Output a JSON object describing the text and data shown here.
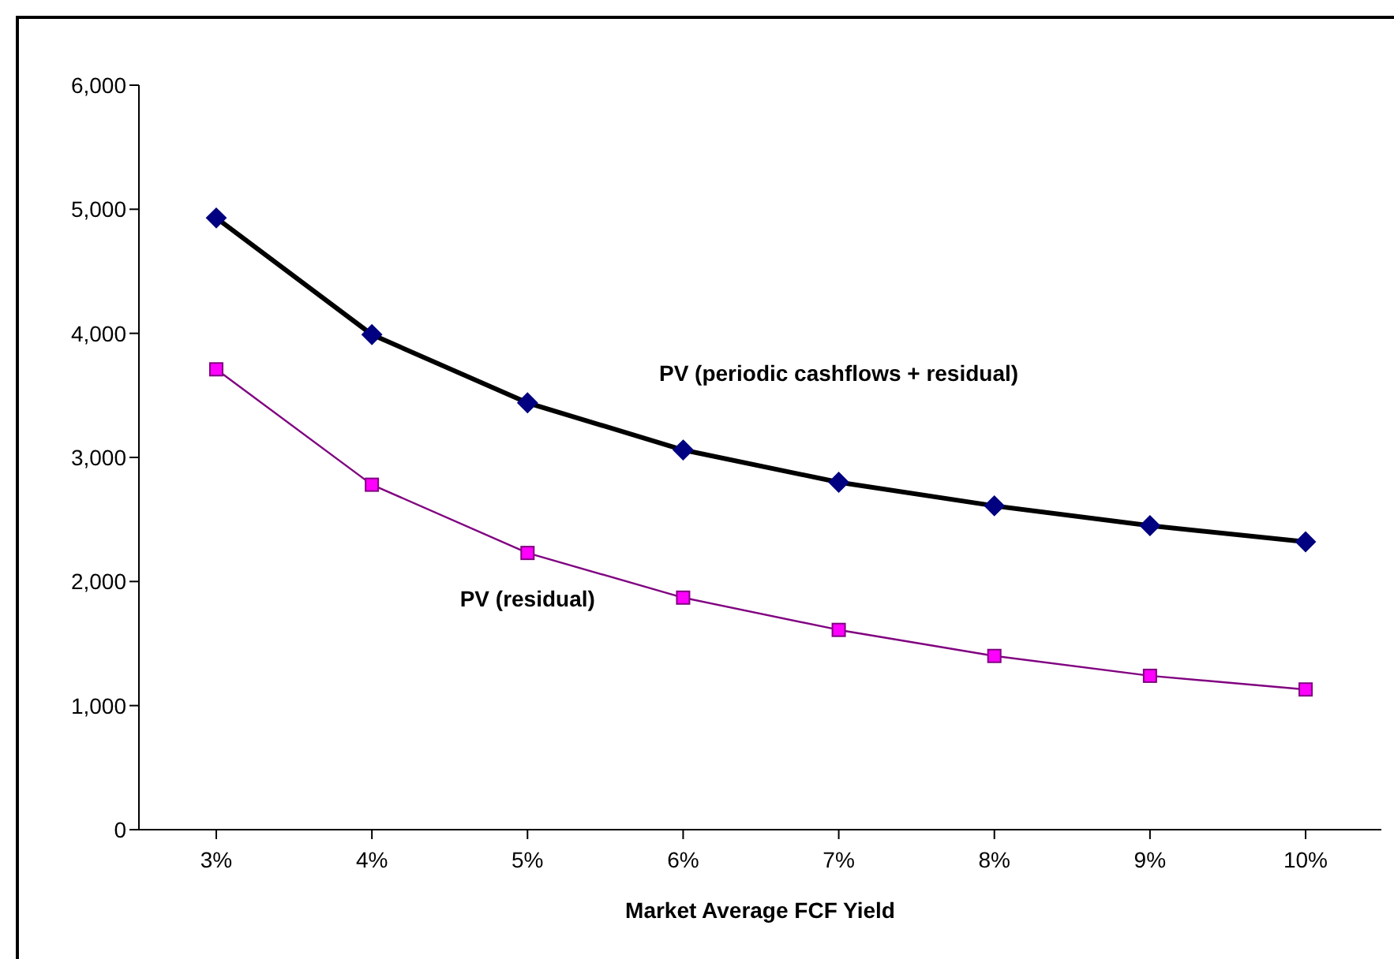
{
  "chart_data": {
    "type": "line",
    "xlabel": "Market Average FCF Yield",
    "categories": [
      "3%",
      "4%",
      "5%",
      "6%",
      "7%",
      "8%",
      "9%",
      "10%"
    ],
    "series": [
      {
        "name": "PV (periodic cashflows + residual)",
        "color": "#000000",
        "colors": [
          "#000080",
          "#000080",
          "#000080",
          "#000080",
          "#000080",
          "#000080",
          "#000080",
          "#000080"
        ],
        "marker": "diamond",
        "values": [
          4930,
          3990,
          3440,
          3060,
          2800,
          2610,
          2450,
          2320
        ]
      },
      {
        "name": "PV (residual)",
        "color": "#800080",
        "colors": [
          "#ff00ff",
          "#ff00ff",
          "#ff00ff",
          "#ff00ff",
          "#ff00ff",
          "#ff00ff",
          "#ff00ff",
          "#ff00ff"
        ],
        "marker": "square",
        "values": [
          3710,
          2780,
          2230,
          1870,
          1610,
          1400,
          1240,
          1130
        ]
      }
    ],
    "ylim": [
      0,
      6000
    ],
    "yticks": [
      0,
      {
        "value": 1000,
        "label": "1,000"
      },
      {
        "value": 2000,
        "label": "2,000"
      },
      {
        "value": 3000,
        "label": "3,000"
      },
      {
        "value": 4000,
        "label": "4,000"
      },
      {
        "value": 5000,
        "label": "5,000"
      },
      {
        "value": 6000,
        "label": "6,000"
      }
    ],
    "grid": false,
    "legend": false
  }
}
